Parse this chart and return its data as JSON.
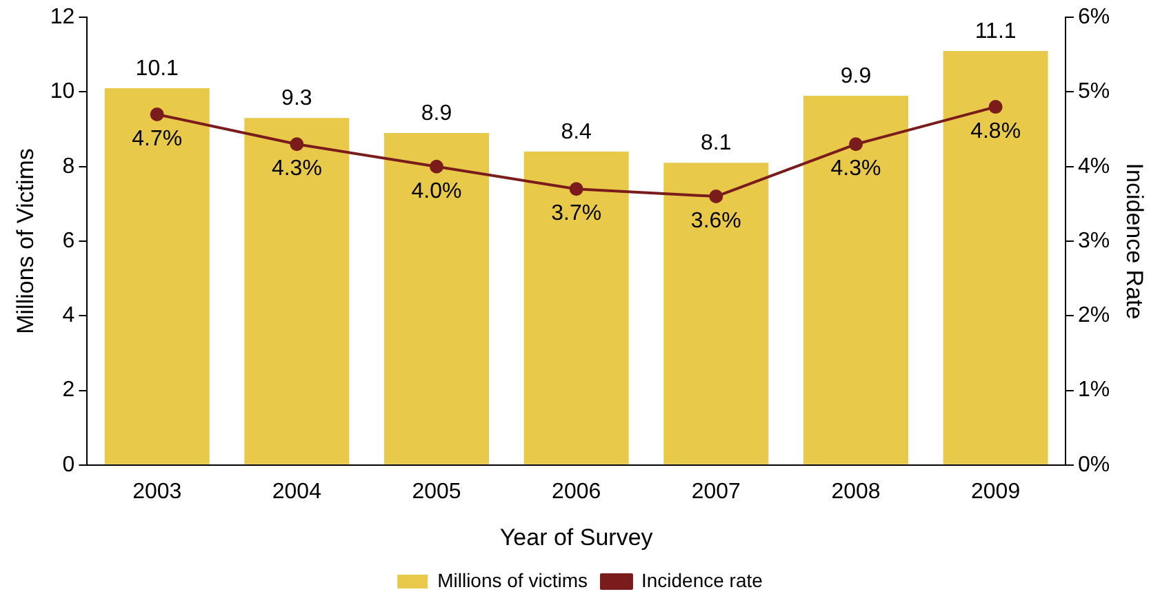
{
  "chart_data": {
    "type": "bar",
    "xlabel": "Year of Survey",
    "ylabel": "Millions of Victims",
    "y2label": "Incidence Rate",
    "categories": [
      "2003",
      "2004",
      "2005",
      "2006",
      "2007",
      "2008",
      "2009"
    ],
    "series": [
      {
        "name": "Millions of victims",
        "color": "#e8c94a",
        "values": [
          10.1,
          9.3,
          8.9,
          8.4,
          8.1,
          9.9,
          11.1
        ]
      },
      {
        "name": "Incidence rate",
        "type": "line",
        "axis": "y2",
        "color": "#7a1c1c",
        "marker": "circle",
        "values": [
          4.7,
          4.3,
          4.0,
          3.7,
          3.6,
          4.3,
          4.8
        ],
        "value_labels": [
          "4.7%",
          "4.3%",
          "4.0%",
          "3.7%",
          "3.6%",
          "4.3%",
          "4.8%"
        ]
      }
    ],
    "ylim": [
      0,
      12
    ],
    "yticks": [
      0,
      2,
      4,
      6,
      8,
      10,
      12
    ],
    "y2lim": [
      0,
      6
    ],
    "y2ticks": [
      {
        "value": 0,
        "label": "0%"
      },
      {
        "value": 1,
        "label": "1%"
      },
      {
        "value": 2,
        "label": "2%"
      },
      {
        "value": 3,
        "label": "3%"
      },
      {
        "value": 4,
        "label": "4%"
      },
      {
        "value": 5,
        "label": "5%"
      },
      {
        "value": 6,
        "label": "6%"
      }
    ],
    "grid": false,
    "legend": "bottom",
    "data_labels": true
  }
}
